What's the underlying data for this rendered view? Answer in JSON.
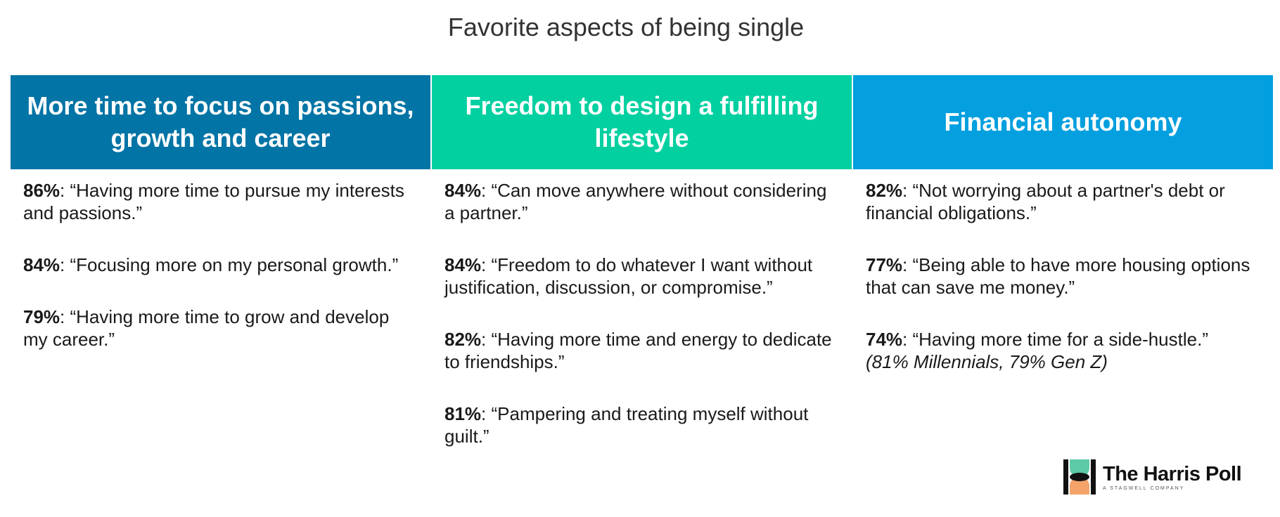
{
  "title": "Favorite aspects of being single",
  "columns": [
    {
      "header": "More time to focus on passions, growth and career",
      "color": "#0274a5",
      "items": [
        {
          "pct": "86%",
          "text": ": “Having more time to pursue my interests and passions.”"
        },
        {
          "pct": "84%",
          "text": ": “Focusing more on my personal growth.”"
        },
        {
          "pct": "79%",
          "text": ": “Having more time to grow and develop my career.”"
        }
      ]
    },
    {
      "header": "Freedom to design a fulfilling lifestyle",
      "color": "#03d0a0",
      "items": [
        {
          "pct": "84%",
          "text": ": “Can move anywhere without considering a partner.”"
        },
        {
          "pct": "84%",
          "text": ": “Freedom to do whatever I want without justification, discussion, or compromise.”"
        },
        {
          "pct": "82%",
          "text": ": “Having more time and energy to dedicate to friendships.”"
        },
        {
          "pct": "81%",
          "text": ": “Pampering and treating myself without guilt.”"
        }
      ]
    },
    {
      "header": "Financial autonomy",
      "color": "#039fdf",
      "items": [
        {
          "pct": "82%",
          "text": ": “Not worrying about a partner's debt or financial obligations.”"
        },
        {
          "pct": "77%",
          "text": ": “Being able to have more housing options that can save me money.”"
        },
        {
          "pct": "74%",
          "text": ": “Having more time for a side-hustle.”",
          "note": "(81% Millennials, 79% Gen Z)"
        }
      ]
    }
  ],
  "logo": {
    "name": "The Harris Poll",
    "tagline": "A STAGWELL COMPANY"
  }
}
